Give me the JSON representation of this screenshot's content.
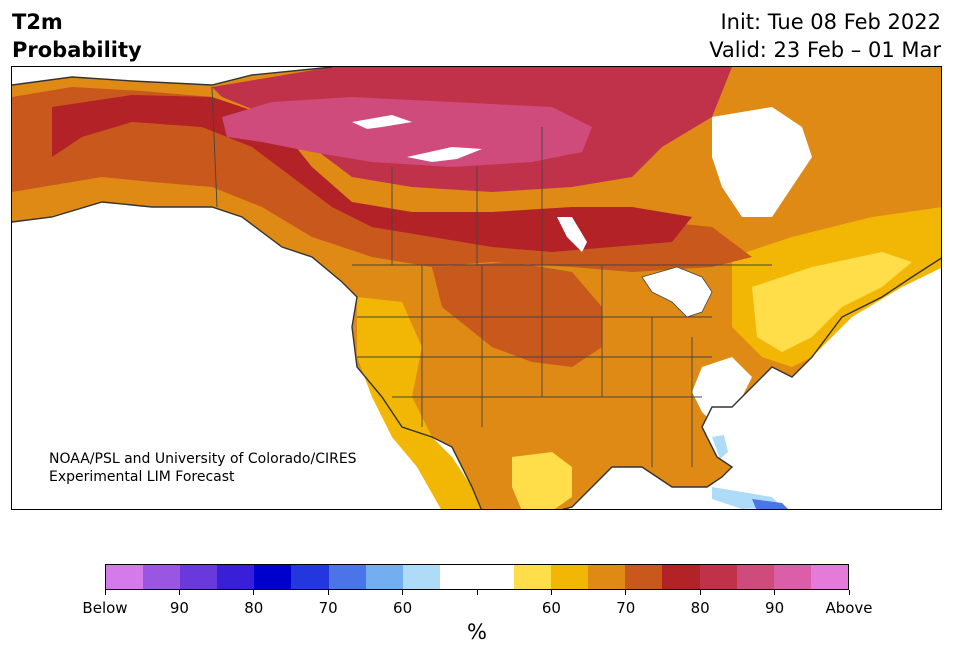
{
  "header": {
    "title_line1": "T2m",
    "title_line2": "Probability",
    "init": "Init: Tue 08 Feb 2022",
    "valid": "Valid: 23 Feb – 01 Mar"
  },
  "credit": {
    "line1": "NOAA/PSL and University of Colorado/CIRES",
    "line2": "Experimental LIM Forecast"
  },
  "colorbar": {
    "colors": [
      "#d57aea",
      "#9b55e3",
      "#6a39dc",
      "#3a1fd8",
      "#0000cc",
      "#2436dd",
      "#4a74e8",
      "#73aff0",
      "#aedcf8",
      "#ffffff",
      "#ffffff",
      "#ffde4a",
      "#f2b705",
      "#df8a14",
      "#c9581c",
      "#b22227",
      "#c0324a",
      "#cf4b7c",
      "#da5ea8",
      "#e67ad8"
    ],
    "labels": [
      "Below",
      "90",
      "80",
      "70",
      "60",
      "",
      "60",
      "70",
      "80",
      "90",
      "Above"
    ],
    "unit": "%"
  },
  "map": {
    "fill_colors": {
      "light_yellow": "#ffde4a",
      "yellow": "#f2b705",
      "orange": "#df8a14",
      "dark_orange": "#c9581c",
      "red": "#b22227",
      "crimson": "#c0324a",
      "rose": "#cf4b7c",
      "light_blue": "#aedcf8",
      "blue": "#4a74e8"
    }
  }
}
